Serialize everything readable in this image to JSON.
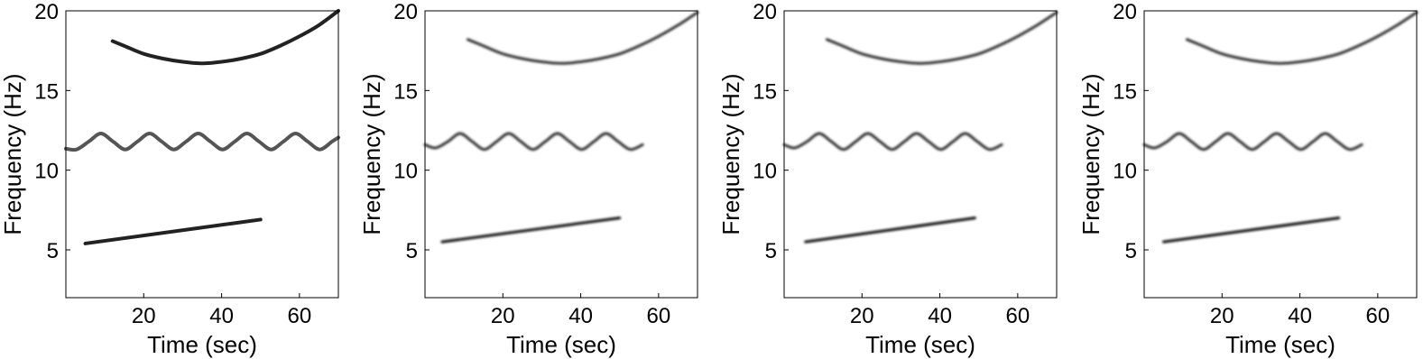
{
  "chart_data": [
    {
      "type": "line",
      "blur": false,
      "xlabel": "Time (sec)",
      "ylabel": "Frequency (Hz)",
      "xlim": [
        0,
        70
      ],
      "ylim": [
        2,
        20
      ],
      "xticks": [
        20,
        40,
        60
      ],
      "yticks": [
        5,
        10,
        15,
        20
      ],
      "series": [
        {
          "color": "#222222",
          "x": [
            12,
            15,
            20,
            25,
            30,
            35,
            40,
            45,
            50,
            55,
            60,
            65,
            70
          ],
          "values": [
            18.1,
            17.8,
            17.3,
            17.0,
            16.8,
            16.7,
            16.8,
            17.0,
            17.3,
            17.8,
            18.4,
            19.1,
            20.0
          ]
        },
        {
          "color": "#555555",
          "x": [
            0,
            2.75,
            5.9,
            9,
            12.1,
            15.25,
            18.4,
            21.5,
            24.6,
            27.75,
            30.9,
            34,
            37.1,
            40.25,
            43.4,
            46.5,
            49.6,
            52.75,
            55.9,
            59,
            62.1,
            65.25,
            68.4,
            70
          ],
          "values": [
            11.35,
            11.3,
            11.8,
            12.3,
            11.8,
            11.3,
            11.8,
            12.3,
            11.8,
            11.3,
            11.8,
            12.3,
            11.8,
            11.3,
            11.8,
            12.3,
            11.8,
            11.3,
            11.8,
            12.3,
            11.8,
            11.3,
            11.8,
            12.05
          ]
        },
        {
          "color": "#222222",
          "x": [
            5,
            50
          ],
          "values": [
            5.4,
            6.9
          ]
        }
      ]
    },
    {
      "type": "line",
      "blur": true,
      "xlabel": "Time (sec)",
      "ylabel": "Frequency (Hz)",
      "xlim": [
        0,
        70
      ],
      "ylim": [
        2,
        20
      ],
      "xticks": [
        20,
        40,
        60
      ],
      "yticks": [
        5,
        10,
        15,
        20
      ],
      "series": [
        {
          "color": "#333333",
          "x": [
            11,
            15,
            20,
            25,
            30,
            35,
            40,
            45,
            50,
            55,
            60,
            65,
            70
          ],
          "values": [
            18.2,
            17.8,
            17.3,
            17.0,
            16.8,
            16.7,
            16.8,
            17.0,
            17.3,
            17.8,
            18.4,
            19.1,
            19.9
          ]
        },
        {
          "color": "#333333",
          "x": [
            0,
            2.75,
            5.9,
            9,
            12.1,
            15.25,
            18.4,
            21.5,
            24.6,
            27.75,
            30.9,
            34,
            37.1,
            40.25,
            43.4,
            46.5,
            49.6,
            52.75,
            55.9
          ],
          "values": [
            11.6,
            11.4,
            11.8,
            12.3,
            11.8,
            11.3,
            11.8,
            12.3,
            11.8,
            11.3,
            11.8,
            12.3,
            11.8,
            11.3,
            11.8,
            12.3,
            11.8,
            11.3,
            11.6
          ]
        },
        {
          "color": "#111111",
          "x": [
            4.4,
            50
          ],
          "values": [
            5.5,
            7.0
          ]
        }
      ]
    },
    {
      "type": "line",
      "blur": true,
      "xlabel": "Time (sec)",
      "ylabel": "Frequency (Hz)",
      "xlim": [
        0,
        70
      ],
      "ylim": [
        2,
        20
      ],
      "xticks": [
        20,
        40,
        60
      ],
      "yticks": [
        5,
        10,
        15,
        20
      ],
      "series": [
        {
          "color": "#333333",
          "x": [
            11,
            15,
            20,
            25,
            30,
            35,
            40,
            45,
            50,
            55,
            60,
            65,
            70
          ],
          "values": [
            18.2,
            17.8,
            17.3,
            17.0,
            16.8,
            16.7,
            16.8,
            17.0,
            17.3,
            17.8,
            18.4,
            19.1,
            19.9
          ]
        },
        {
          "color": "#333333",
          "x": [
            0,
            2.75,
            5.9,
            9,
            12.1,
            15.25,
            18.4,
            21.5,
            24.6,
            27.75,
            30.9,
            34,
            37.1,
            40.25,
            43.4,
            46.5,
            49.6,
            52.75,
            55.9
          ],
          "values": [
            11.6,
            11.4,
            11.8,
            12.3,
            11.8,
            11.3,
            11.8,
            12.3,
            11.8,
            11.3,
            11.8,
            12.3,
            11.8,
            11.3,
            11.8,
            12.3,
            11.8,
            11.3,
            11.6
          ]
        },
        {
          "color": "#111111",
          "x": [
            5.5,
            49
          ],
          "values": [
            5.5,
            7.0
          ]
        }
      ]
    },
    {
      "type": "line",
      "blur": true,
      "xlabel": "Time (sec)",
      "ylabel": "Frequency (Hz)",
      "xlim": [
        0,
        70
      ],
      "ylim": [
        2,
        20
      ],
      "xticks": [
        20,
        40,
        60
      ],
      "yticks": [
        5,
        10,
        15,
        20
      ],
      "series": [
        {
          "color": "#333333",
          "x": [
            11,
            15,
            20,
            25,
            30,
            35,
            40,
            45,
            50,
            55,
            60,
            65,
            70
          ],
          "values": [
            18.2,
            17.8,
            17.3,
            17.0,
            16.8,
            16.7,
            16.8,
            17.0,
            17.3,
            17.8,
            18.4,
            19.1,
            19.9
          ]
        },
        {
          "color": "#333333",
          "x": [
            0,
            2.75,
            5.9,
            9,
            12.1,
            15.25,
            18.4,
            21.5,
            24.6,
            27.75,
            30.9,
            34,
            37.1,
            40.25,
            43.4,
            46.5,
            49.6,
            52.75,
            55.9
          ],
          "values": [
            11.6,
            11.4,
            11.8,
            12.3,
            11.8,
            11.3,
            11.8,
            12.3,
            11.8,
            11.3,
            11.8,
            12.3,
            11.8,
            11.3,
            11.8,
            12.3,
            11.8,
            11.3,
            11.6
          ]
        },
        {
          "color": "#111111",
          "x": [
            5,
            50
          ],
          "values": [
            5.5,
            7.0
          ]
        }
      ]
    }
  ]
}
